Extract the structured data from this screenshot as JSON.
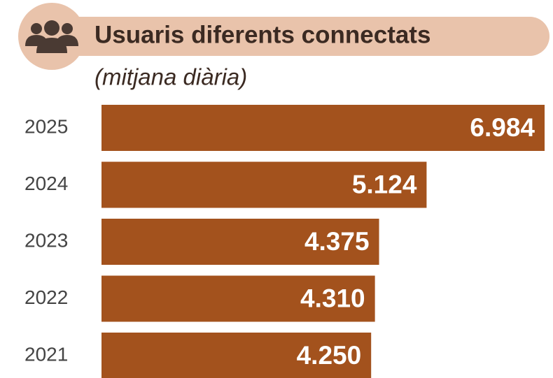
{
  "chart_data": {
    "type": "bar",
    "orientation": "horizontal",
    "title": "Usuaris diferents connectats",
    "subtitle": "(mitjana diària)",
    "categories": [
      "2025",
      "2024",
      "2023",
      "2022",
      "2021"
    ],
    "values": [
      6984,
      5124,
      4375,
      4310,
      4250
    ],
    "value_labels": [
      "6.984",
      "5.124",
      "4.375",
      "4.310",
      "4.250"
    ],
    "color": "#a3521d"
  }
}
